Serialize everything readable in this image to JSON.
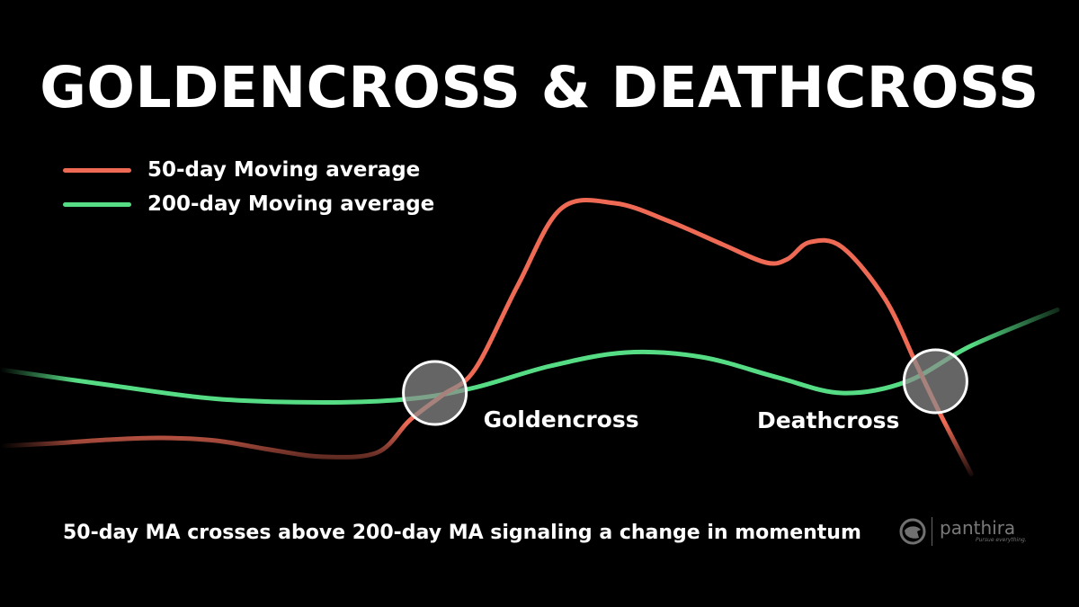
{
  "title": "GOLDENCROSS & DEATHCROSS",
  "caption": "50-day MA crosses above 200-day MA signaling a change in momentum",
  "brand": {
    "name": "panthira",
    "tagline": "Pursue everything.",
    "icon": "panther-logo-icon"
  },
  "colors": {
    "background": "#000000",
    "ma50": "#ee6a55",
    "ma200": "#56dc84",
    "marker": "#888888"
  },
  "chart_data": {
    "type": "line",
    "xlabel": "",
    "ylabel": "",
    "grid": false,
    "legend_position": "top-left",
    "series": [
      {
        "name": "50-day Moving average",
        "color": "#ee6a55",
        "points": [
          [
            0,
            -0.98
          ],
          [
            5,
            -0.92
          ],
          [
            10,
            -0.84
          ],
          [
            15,
            -0.8
          ],
          [
            20,
            -0.86
          ],
          [
            25,
            -1.06
          ],
          [
            30,
            -1.22
          ],
          [
            35,
            -1.12
          ],
          [
            38,
            -0.4
          ],
          [
            41,
            0.15
          ],
          [
            44,
            0.72
          ],
          [
            48,
            2.6
          ],
          [
            52,
            4.3
          ],
          [
            57,
            4.42
          ],
          [
            62,
            4.02
          ],
          [
            67,
            3.5
          ],
          [
            71,
            3.1
          ],
          [
            73,
            3.18
          ],
          [
            75,
            3.55
          ],
          [
            78,
            3.45
          ],
          [
            82,
            2.3
          ],
          [
            85,
            0.8
          ],
          [
            87,
            -0.2
          ],
          [
            90,
            -1.6
          ]
        ]
      },
      {
        "name": "200-day Moving average",
        "color": "#56dc84",
        "points": [
          [
            0,
            0.72
          ],
          [
            10,
            0.38
          ],
          [
            20,
            0.07
          ],
          [
            30,
            -0.01
          ],
          [
            38,
            0.07
          ],
          [
            44,
            0.32
          ],
          [
            51,
            0.8
          ],
          [
            58,
            1.1
          ],
          [
            65,
            1.0
          ],
          [
            72,
            0.55
          ],
          [
            78,
            0.2
          ],
          [
            84,
            0.45
          ],
          [
            90,
            1.25
          ],
          [
            98,
            2.05
          ]
        ]
      }
    ],
    "annotations": [
      {
        "label": "Goldencross",
        "x": 40.3,
        "y": 0.2
      },
      {
        "label": "Deathcross",
        "x": 86.7,
        "y": 0.46
      }
    ]
  }
}
